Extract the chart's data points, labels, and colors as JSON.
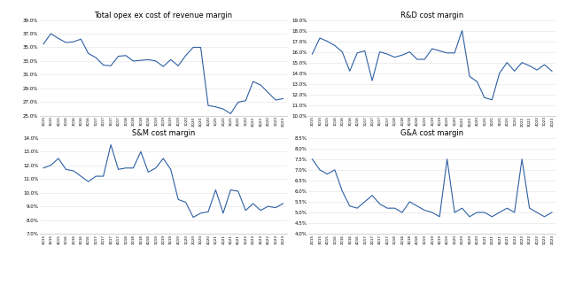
{
  "quarters": [
    "2Q15",
    "3Q15",
    "4Q15",
    "1Q16",
    "2Q16",
    "3Q16",
    "4Q16",
    "1Q17",
    "2Q17",
    "3Q17",
    "4Q17",
    "1Q18",
    "2Q18",
    "3Q18",
    "4Q18",
    "1Q19",
    "2Q19",
    "3Q19",
    "4Q19",
    "1Q20",
    "2Q20",
    "3Q20",
    "4Q20",
    "1Q21",
    "2Q21",
    "3Q21",
    "4Q21",
    "1Q22",
    "2Q22",
    "3Q22",
    "4Q22",
    "1Q23",
    "2Q23"
  ],
  "total_opex": [
    35.5,
    37.0,
    36.3,
    35.7,
    35.8,
    36.2,
    34.1,
    33.5,
    32.4,
    32.3,
    33.7,
    33.8,
    33.0,
    33.1,
    33.2,
    33.0,
    32.2,
    33.2,
    32.3,
    33.8,
    35.0,
    35.0,
    26.5,
    26.3,
    26.0,
    25.3,
    27.0,
    27.2,
    30.0,
    29.5,
    28.4,
    27.3,
    27.5
  ],
  "rd_margin": [
    15.8,
    17.3,
    17.0,
    16.6,
    16.0,
    14.2,
    15.9,
    16.1,
    13.3,
    16.0,
    15.8,
    15.5,
    15.7,
    16.0,
    15.3,
    15.3,
    16.3,
    16.1,
    15.9,
    15.9,
    18.0,
    13.7,
    13.2,
    11.7,
    11.5,
    14.0,
    15.0,
    14.2,
    15.0,
    14.7,
    14.3,
    14.8,
    14.2
  ],
  "sm_margin": [
    11.8,
    12.0,
    12.5,
    11.7,
    11.6,
    11.2,
    10.8,
    11.2,
    11.2,
    13.5,
    11.7,
    11.8,
    11.8,
    13.0,
    11.5,
    11.8,
    12.5,
    11.7,
    9.5,
    9.3,
    8.2,
    8.5,
    8.6,
    10.2,
    8.5,
    10.2,
    10.1,
    8.7,
    9.2,
    8.7,
    9.0,
    8.9,
    9.2
  ],
  "ga_margin": [
    7.5,
    7.0,
    6.8,
    7.0,
    6.0,
    5.3,
    5.2,
    5.5,
    5.8,
    5.4,
    5.2,
    5.2,
    5.0,
    5.5,
    5.3,
    5.1,
    5.0,
    4.8,
    7.5,
    5.0,
    5.2,
    4.8,
    5.0,
    5.0,
    4.8,
    5.0,
    5.2,
    5.0,
    7.5,
    5.2,
    5.0,
    4.8,
    5.0
  ],
  "line_color": "#2e5fa3",
  "title1": "Total opex ex cost of revenue margin",
  "title2": "R&D cost margin",
  "title3": "S&M cost margin",
  "title4": "G&A cost margin",
  "total_opex_ylim": [
    25,
    39
  ],
  "total_opex_yticks": [
    25,
    27,
    29,
    31,
    33,
    35,
    37,
    39
  ],
  "rd_ylim": [
    10,
    19
  ],
  "rd_yticks": [
    10,
    11,
    12,
    13,
    14,
    15,
    16,
    17,
    18,
    19
  ],
  "sm_ylim": [
    7,
    14
  ],
  "sm_yticks": [
    7,
    8,
    9,
    10,
    11,
    12,
    13,
    14
  ],
  "ga_ylim": [
    4.0,
    8.5
  ],
  "ga_yticks": [
    4.0,
    4.5,
    5.0,
    5.5,
    6.0,
    6.5,
    7.0,
    7.5,
    8.0,
    8.5
  ]
}
